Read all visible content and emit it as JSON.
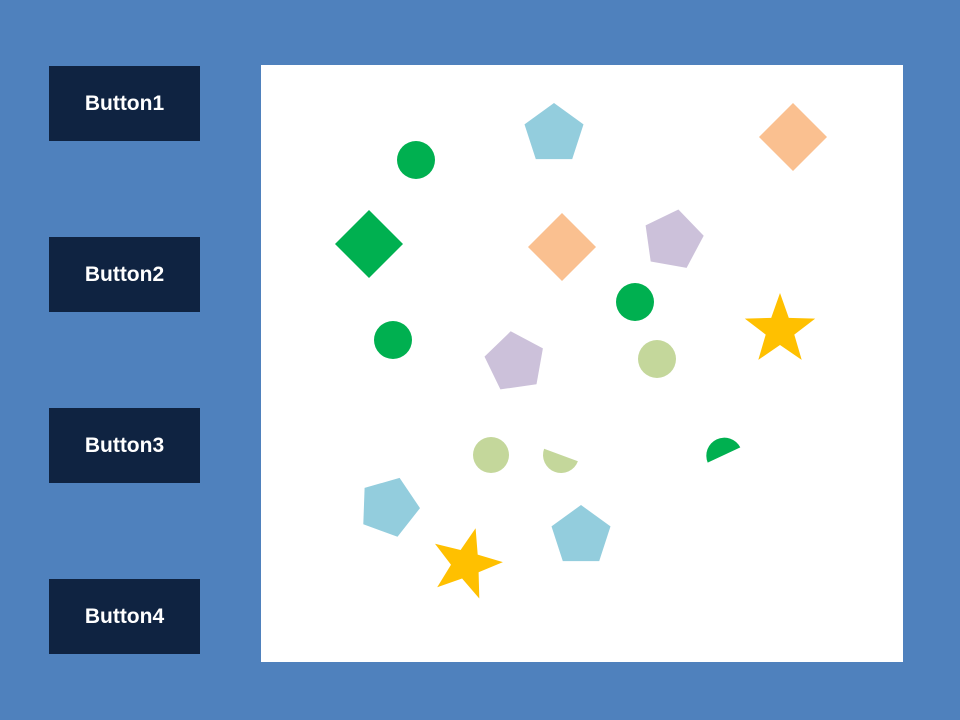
{
  "buttons": [
    {
      "label": "Button1"
    },
    {
      "label": "Button2"
    },
    {
      "label": "Button3"
    },
    {
      "label": "Button4"
    }
  ],
  "colors": {
    "background": "#4f81bd",
    "button_bg": "#0f2341",
    "button_text": "#ffffff",
    "canvas_bg": "#ffffff",
    "green": "#00b050",
    "light_green": "#c4d79b",
    "light_blue": "#93cddd",
    "peach": "#fac090",
    "lavender": "#ccc1da",
    "gold": "#ffc000"
  },
  "shapes": [
    {
      "name": "green-circle-shape",
      "type": "circle",
      "color": "green"
    },
    {
      "name": "light-blue-pentagon-shape",
      "type": "pentagon",
      "color": "light_blue"
    },
    {
      "name": "peach-diamond-shape",
      "type": "diamond",
      "color": "peach"
    },
    {
      "name": "green-diamond-shape",
      "type": "diamond",
      "color": "green"
    },
    {
      "name": "peach-diamond-shape",
      "type": "diamond",
      "color": "peach"
    },
    {
      "name": "lavender-pentagon-shape",
      "type": "pentagon",
      "color": "lavender"
    },
    {
      "name": "green-circle-shape",
      "type": "circle",
      "color": "green"
    },
    {
      "name": "gold-star-shape",
      "type": "star",
      "color": "gold"
    },
    {
      "name": "green-circle-shape",
      "type": "circle",
      "color": "green"
    },
    {
      "name": "lavender-pentagon-shape",
      "type": "pentagon",
      "color": "lavender"
    },
    {
      "name": "light-green-circle-shape",
      "type": "circle",
      "color": "light_green"
    },
    {
      "name": "light-green-circle-shape",
      "type": "circle",
      "color": "light_green"
    },
    {
      "name": "light-green-partial-circle-shape",
      "type": "partial-circle",
      "color": "light_green"
    },
    {
      "name": "green-partial-circle-shape",
      "type": "partial-circle",
      "color": "green"
    },
    {
      "name": "light-blue-pentagon-shape",
      "type": "pentagon",
      "color": "light_blue"
    },
    {
      "name": "light-blue-pentagon-shape",
      "type": "pentagon",
      "color": "light_blue"
    },
    {
      "name": "gold-star-shape",
      "type": "star",
      "color": "gold"
    }
  ]
}
